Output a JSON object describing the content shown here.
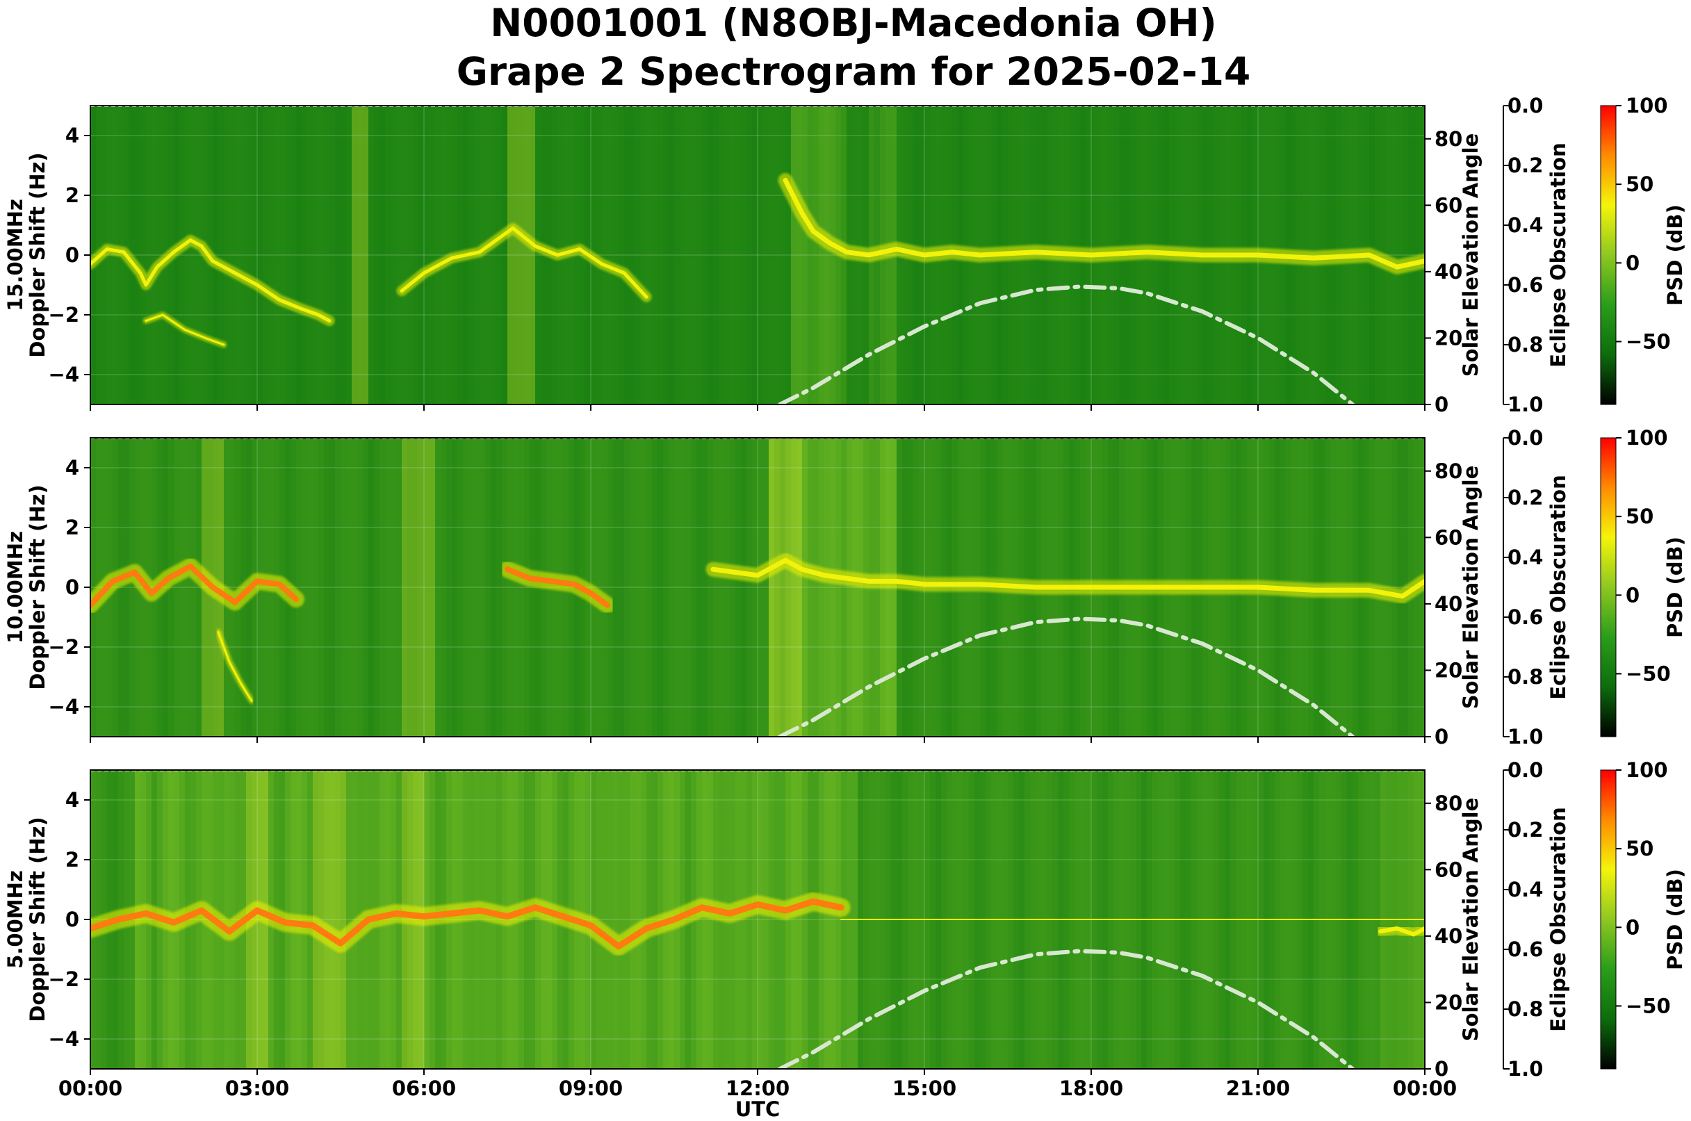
{
  "title": {
    "line1": "N0001001 (N8OBJ-Macedonia OH)",
    "line2": "Grape 2 Spectrogram for 2025-02-14"
  },
  "colors": {
    "background_green": "#0f7a0f",
    "trace_yellow": "#f2f20a",
    "trace_orange": "#ff7a10",
    "solar_curve": "#d8e8d0"
  },
  "chart_data": {
    "type": "heatmap",
    "shared_x": {
      "label": "UTC",
      "tick_labels": [
        "00:00",
        "03:00",
        "06:00",
        "09:00",
        "12:00",
        "15:00",
        "18:00",
        "21:00",
        "00:00"
      ],
      "range_hours": [
        0,
        24
      ]
    },
    "y_ticks": [
      4,
      2,
      0,
      -2,
      -4
    ],
    "y_tick_labels": [
      "4",
      "2",
      "0",
      "−2",
      "−4"
    ],
    "ylim": [
      -5,
      5
    ],
    "solar_axis": {
      "label": "Solar Elevation Angle",
      "tick_labels": [
        "0",
        "20",
        "40",
        "60",
        "80"
      ],
      "range": [
        0,
        90
      ]
    },
    "eclipse_axis": {
      "label": "Eclipse Obscuration",
      "tick_labels": [
        "0.0",
        "0.2",
        "0.4",
        "0.6",
        "0.8",
        "1.0"
      ],
      "range": [
        0.0,
        1.0
      ],
      "inverted": true
    },
    "colorbar": {
      "label": "PSD (dB)",
      "tick_labels": [
        "100",
        "50",
        "0",
        "−50"
      ],
      "range": [
        -90,
        100
      ],
      "stops": [
        "#000000",
        "#0c6d0c",
        "#2a9d1a",
        "#8ec820",
        "#f4f40a",
        "#ff8c00",
        "#ff0000"
      ]
    },
    "solar_elevation_curve": {
      "x_hours": [
        12.4,
        13,
        14,
        15,
        16,
        17,
        17.8,
        18.5,
        19,
        20,
        21,
        22,
        22.7
      ],
      "elevation_deg": [
        0,
        5,
        15,
        23.5,
        30.5,
        34.5,
        35.5,
        35,
        33.5,
        28,
        20,
        9.5,
        0
      ]
    },
    "panels": [
      {
        "ylabel_line1": "15.00MHz",
        "ylabel_line2": "Doppler Shift (Hz)",
        "background_intensity": 0.15,
        "noise_strips_hours": [
          [
            4.7,
            5.0
          ],
          [
            7.5,
            8.0
          ]
        ],
        "day_glow": [
          [
            12.6,
            13.6,
            0.35
          ],
          [
            14.0,
            14.5,
            0.25
          ]
        ],
        "traces": [
          {
            "x": [
              0,
              0.3,
              0.6,
              0.9,
              1.0,
              1.2,
              1.5,
              1.8,
              2.0,
              2.2,
              2.5,
              2.8,
              3.0,
              3.4,
              3.8,
              4.1,
              4.3
            ],
            "y": [
              -0.3,
              0.2,
              0.1,
              -0.6,
              -1.0,
              -0.4,
              0.1,
              0.5,
              0.3,
              -0.2,
              -0.5,
              -0.8,
              -1.0,
              -1.5,
              -1.8,
              -2.0,
              -2.2
            ],
            "w": 5,
            "c": "yellow"
          },
          {
            "x": [
              1.0,
              1.3,
              1.7,
              2.1,
              2.4
            ],
            "y": [
              -2.2,
              -2.0,
              -2.5,
              -2.8,
              -3.0
            ],
            "w": 3,
            "c": "yellow"
          },
          {
            "x": [
              5.6,
              6.0,
              6.5,
              7.0,
              7.3,
              7.6,
              8.0,
              8.4,
              8.8,
              9.2,
              9.6,
              10.0
            ],
            "y": [
              -1.2,
              -0.6,
              -0.1,
              0.1,
              0.5,
              0.9,
              0.3,
              0.0,
              0.2,
              -0.3,
              -0.6,
              -1.4
            ],
            "w": 5,
            "c": "yellow"
          },
          {
            "x": [
              12.5,
              12.8,
              13.0,
              13.3,
              13.6,
              14.0,
              14.5,
              15.0,
              15.5,
              16,
              17,
              18,
              19,
              20,
              21,
              22,
              23,
              23.5,
              24
            ],
            "y": [
              2.5,
              1.4,
              0.8,
              0.4,
              0.1,
              0.0,
              0.2,
              0.0,
              0.1,
              0.0,
              0.1,
              0.0,
              0.1,
              0.0,
              0.0,
              -0.1,
              0.0,
              -0.4,
              -0.2
            ],
            "w": 7,
            "c": "yellow"
          }
        ]
      },
      {
        "ylabel_line1": "10.00MHz",
        "ylabel_line2": "Doppler Shift (Hz)",
        "background_intensity": 0.3,
        "noise_strips_hours": [
          [
            2.0,
            2.4
          ],
          [
            5.6,
            6.2
          ],
          [
            12.2,
            12.8
          ]
        ],
        "day_glow": [
          [
            12.2,
            14.5,
            0.4
          ]
        ],
        "traces": [
          {
            "x": [
              0,
              0.4,
              0.8,
              1.1,
              1.4,
              1.8,
              2.2,
              2.6,
              3.0,
              3.4,
              3.7
            ],
            "y": [
              -0.6,
              0.2,
              0.5,
              -0.2,
              0.3,
              0.7,
              0.0,
              -0.5,
              0.2,
              0.1,
              -0.4
            ],
            "w": 8,
            "c": "orange"
          },
          {
            "x": [
              2.3,
              2.5,
              2.7,
              2.9
            ],
            "y": [
              -1.5,
              -2.5,
              -3.2,
              -3.8
            ],
            "w": 3,
            "c": "yellow"
          },
          {
            "x": [
              7.5,
              7.9,
              8.3,
              8.7,
              9.0,
              9.3
            ],
            "y": [
              0.6,
              0.3,
              0.2,
              0.1,
              -0.2,
              -0.6
            ],
            "w": 8,
            "c": "orange"
          },
          {
            "x": [
              11.2,
              11.6,
              12.0,
              12.5,
              12.8,
              13.2,
              13.6,
              14.0,
              14.5,
              15,
              16,
              17,
              18,
              19,
              20,
              21,
              22,
              23,
              23.6,
              24
            ],
            "y": [
              0.6,
              0.5,
              0.4,
              0.9,
              0.6,
              0.4,
              0.3,
              0.2,
              0.2,
              0.1,
              0.1,
              0.0,
              0.0,
              0.0,
              0.0,
              0.0,
              -0.1,
              -0.1,
              -0.3,
              0.2
            ],
            "w": 7,
            "c": "yellow"
          }
        ]
      },
      {
        "ylabel_line1": "5.00MHz",
        "ylabel_line2": "Doppler Shift (Hz)",
        "background_intensity": 0.35,
        "noise_strips_hours": [
          [
            2.8,
            3.2
          ],
          [
            4.0,
            4.6
          ],
          [
            5.6,
            6.0
          ]
        ],
        "day_glow": [
          [
            0.8,
            13.8,
            0.3
          ],
          [
            23.2,
            24.0,
            0.2
          ]
        ],
        "traces": [
          {
            "x": [
              0,
              0.5,
              1.0,
              1.5,
              2.0,
              2.5,
              3.0,
              3.5,
              4.0,
              4.5,
              5.0,
              5.5,
              6.0,
              6.5,
              7.0,
              7.5,
              8.0,
              8.5,
              9.0,
              9.5,
              10.0,
              10.5,
              11.0,
              11.5,
              12.0,
              12.5,
              13.0,
              13.5
            ],
            "y": [
              -0.3,
              0.0,
              0.2,
              -0.1,
              0.3,
              -0.4,
              0.3,
              -0.1,
              -0.2,
              -0.8,
              0.0,
              0.2,
              0.1,
              0.2,
              0.3,
              0.1,
              0.4,
              0.1,
              -0.2,
              -0.9,
              -0.3,
              0.0,
              0.4,
              0.2,
              0.5,
              0.3,
              0.6,
              0.4
            ],
            "w": 9,
            "c": "orange"
          },
          {
            "x": [
              13.5,
              16,
              19,
              22,
              24
            ],
            "y": [
              0.0,
              0.0,
              0.0,
              0.0,
              0.0
            ],
            "w": 2,
            "c": "yellow"
          },
          {
            "x": [
              23.2,
              23.5,
              23.8,
              24
            ],
            "y": [
              -0.4,
              -0.3,
              -0.5,
              -0.3
            ],
            "w": 6,
            "c": "yellow"
          }
        ]
      }
    ]
  }
}
